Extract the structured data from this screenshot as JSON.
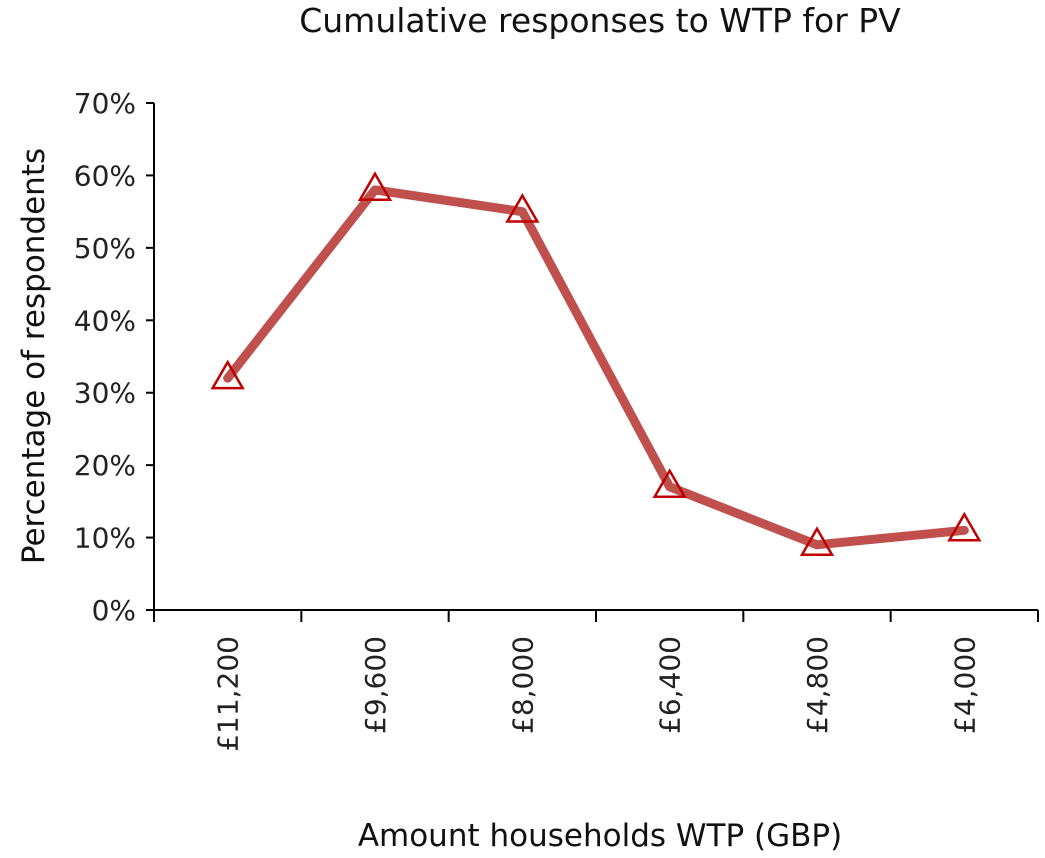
{
  "chart_data": {
    "type": "line",
    "title": "Cumulative responses to WTP for PV",
    "xlabel": "Amount households WTP (GBP)",
    "ylabel": "Percentage of respondents",
    "categories": [
      "£11,200",
      "£9,600",
      "£8,000",
      "£6,400",
      "£4,800",
      "£4,000"
    ],
    "series": [
      {
        "values": [
          0.32,
          0.58,
          0.55,
          0.17,
          0.09,
          0.11
        ],
        "line_color": "#c0504d",
        "marker_color": "#c00000",
        "marker": "triangle-open"
      }
    ],
    "ylim": [
      0,
      0.7
    ],
    "yticks": [
      0,
      0.1,
      0.2,
      0.3,
      0.4,
      0.5,
      0.6,
      0.7
    ],
    "ytick_labels": [
      "0%",
      "10%",
      "20%",
      "30%",
      "40%",
      "50%",
      "60%",
      "70%"
    ],
    "grid": false,
    "legend": "none"
  }
}
